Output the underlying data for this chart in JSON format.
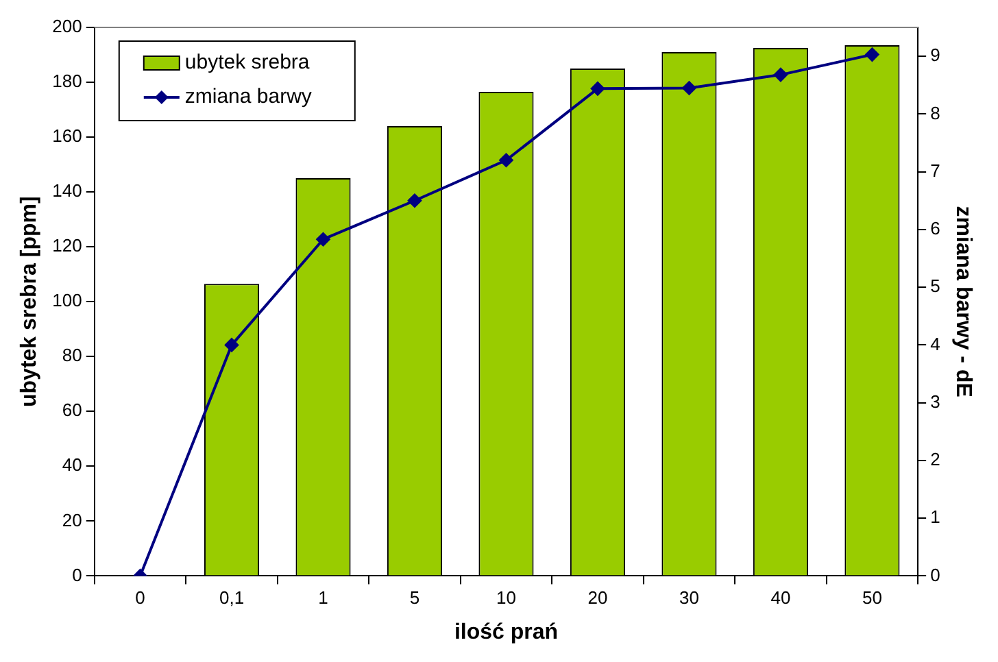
{
  "chart_data": {
    "type": "bar",
    "xlabel": "ilość prań",
    "ylabel": "ubytek srebra [ppm]",
    "y2label": "zmiana barwy - dE",
    "categories": [
      "0",
      "0,1",
      "1",
      "5",
      "10",
      "20",
      "30",
      "40",
      "50"
    ],
    "series": [
      {
        "name": "ubytek srebra",
        "color": "#99cc00",
        "values": [
          0,
          106.5,
          145,
          164,
          176.5,
          185,
          191,
          192.5,
          193.5
        ]
      },
      {
        "name": "zmiana barwy",
        "type": "line",
        "axis": "y2",
        "color": "#000080",
        "marker": "diamond",
        "values": [
          0,
          4.0,
          5.83,
          6.5,
          7.2,
          8.44,
          8.45,
          8.68,
          9.03
        ]
      }
    ],
    "ylim": [
      0,
      200
    ],
    "yticks": [
      0,
      20,
      40,
      60,
      80,
      100,
      120,
      140,
      160,
      180,
      200
    ],
    "y2lim": [
      0,
      9.5
    ],
    "y2ticks": [
      0,
      1,
      2,
      3,
      4,
      5,
      6,
      7,
      8,
      9
    ],
    "grid": false,
    "legend": "top left"
  }
}
